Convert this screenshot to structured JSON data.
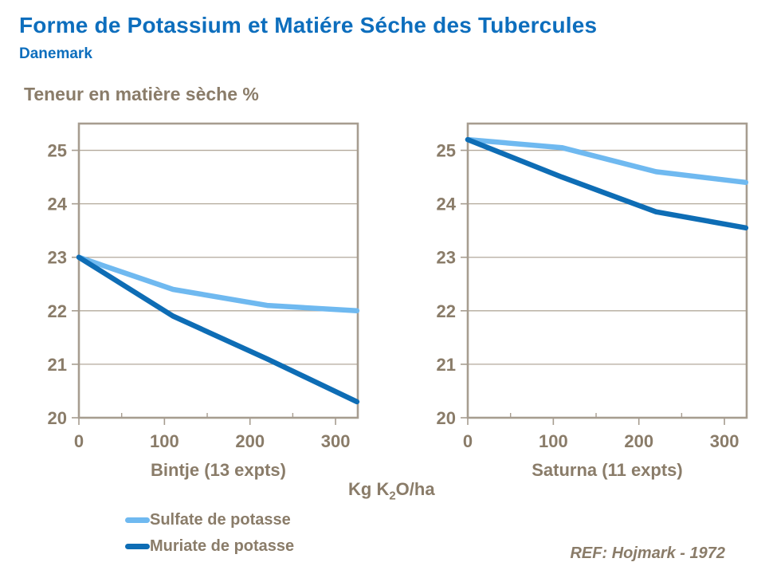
{
  "header": {
    "title": "Forme de Potassium et Matiére Séche des Tubercules",
    "subtitle": "Danemark"
  },
  "axis_title": "Teneur en matière sèche %",
  "x_axis_title": {
    "pre": "Kg K",
    "sub": "2",
    "post": "O/ha",
    "full": "Kg K2O/ha"
  },
  "colors": {
    "title_blue": "#0D6EBD",
    "text_brown": "#8A7C69",
    "grid": "#B3A99B",
    "frame": "#A79D90",
    "sulfate": "#6FB9F0",
    "muriate": "#0E6DB5"
  },
  "chart_data": [
    {
      "type": "line",
      "title": "Bintje (13 expts)",
      "x": [
        0,
        110,
        220,
        325
      ],
      "series": [
        {
          "name": "Sulfate de potasse",
          "color": "#6FB9F0",
          "values": [
            23.0,
            22.4,
            22.1,
            22.0
          ]
        },
        {
          "name": "Muriate de potasse",
          "color": "#0E6DB5",
          "values": [
            23.0,
            21.9,
            21.1,
            20.3
          ]
        }
      ],
      "xticks": [
        0,
        100,
        200,
        300
      ],
      "xminorticks": [
        50,
        150,
        250
      ],
      "yticks": [
        20,
        21,
        22,
        23,
        24,
        25
      ],
      "xlim": [
        0,
        326
      ],
      "ylim": [
        20,
        25.5
      ],
      "grid": true,
      "legend_position": "bottom-left",
      "xlabel": "Kg K2O/ha",
      "ylabel": "Teneur en matière sèche %"
    },
    {
      "type": "line",
      "title": "Saturna (11 expts)",
      "x": [
        0,
        110,
        220,
        325
      ],
      "series": [
        {
          "name": "Sulfate de potasse",
          "color": "#6FB9F0",
          "values": [
            25.2,
            25.05,
            24.6,
            24.4
          ]
        },
        {
          "name": "Muriate de potasse",
          "color": "#0E6DB5",
          "values": [
            25.2,
            24.5,
            23.85,
            23.55
          ]
        }
      ],
      "xticks": [
        0,
        100,
        200,
        300
      ],
      "xminorticks": [
        50,
        150,
        250
      ],
      "yticks": [
        20,
        21,
        22,
        23,
        24,
        25
      ],
      "xlim": [
        0,
        326
      ],
      "ylim": [
        20,
        25.5
      ],
      "grid": true,
      "xlabel": "Kg K2O/ha",
      "ylabel": "Teneur en matière sèche %"
    }
  ],
  "legend": {
    "items": [
      {
        "label": "Sulfate de potasse",
        "color_key": "sulfate"
      },
      {
        "label": "Muriate de potasse",
        "color_key": "muriate"
      }
    ]
  },
  "footer": {
    "ref": "REF: Hojmark - 1972"
  }
}
